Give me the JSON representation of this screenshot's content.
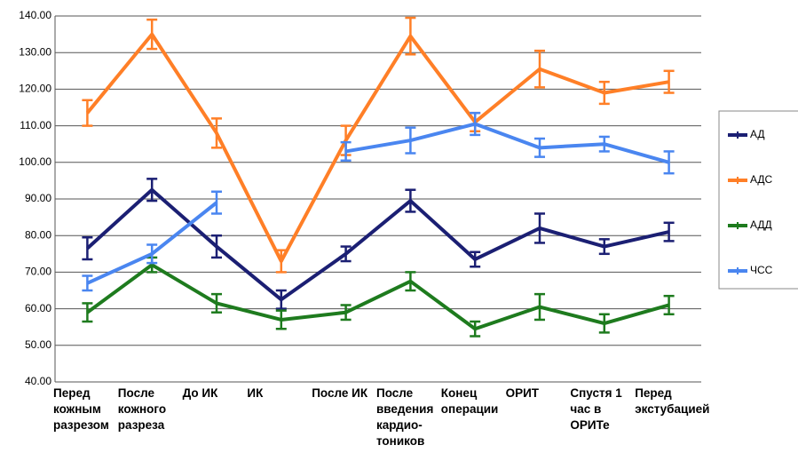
{
  "chart_data": {
    "type": "line",
    "categories": [
      "Перед кожным разрезом",
      "После кожного разреза",
      "До ИК",
      "ИК",
      "После ИК",
      "После введения кардио-тоников",
      "Конец операции",
      "ОРИТ",
      "Спустя 1 час в ОРИТе",
      "Перед экстубацией"
    ],
    "series": [
      {
        "name": "АД",
        "color": "#1b1f73",
        "values": [
          76.5,
          92.5,
          77,
          62.5,
          75,
          89.5,
          73.5,
          82,
          77,
          81
        ],
        "errors": [
          3,
          3,
          3,
          2.5,
          2,
          3,
          2,
          4,
          2,
          2.5
        ]
      },
      {
        "name": "АДС",
        "color": "#ff7f27",
        "values": [
          113.5,
          135,
          108,
          73,
          106,
          134.5,
          111,
          125.5,
          119,
          122
        ],
        "errors": [
          3.5,
          4,
          4,
          3,
          4,
          5,
          2.5,
          5,
          3,
          3
        ]
      },
      {
        "name": "АДД",
        "color": "#1e7b1e",
        "values": [
          59,
          72,
          61.5,
          57,
          59,
          67.5,
          54.5,
          60.5,
          56,
          61
        ],
        "errors": [
          2.5,
          2,
          2.5,
          2.5,
          2,
          2.5,
          2,
          3.5,
          2.5,
          2.5
        ]
      },
      {
        "name": "ЧСС",
        "color": "#4a86f0",
        "values": [
          67,
          75,
          89,
          null,
          103,
          106,
          110.5,
          104,
          105,
          100
        ],
        "errors": [
          2,
          2.5,
          3,
          null,
          2.5,
          3.5,
          3,
          2.5,
          2,
          3
        ]
      }
    ],
    "ylim": [
      40,
      140
    ],
    "yticks": [
      {
        "value": 40,
        "label": "40.00"
      },
      {
        "value": 50,
        "label": "50.00"
      },
      {
        "value": 60,
        "label": "60.00"
      },
      {
        "value": 70,
        "label": "70.00"
      },
      {
        "value": 80,
        "label": "80.00"
      },
      {
        "value": 90,
        "label": "90.00"
      },
      {
        "value": 100,
        "label": "100.00"
      },
      {
        "value": 110,
        "label": "110.00"
      },
      {
        "value": 120,
        "label": "120.00"
      },
      {
        "value": 130,
        "label": "130.00"
      },
      {
        "value": 140,
        "label": "140.00"
      }
    ],
    "grid": true,
    "legend": "right"
  }
}
